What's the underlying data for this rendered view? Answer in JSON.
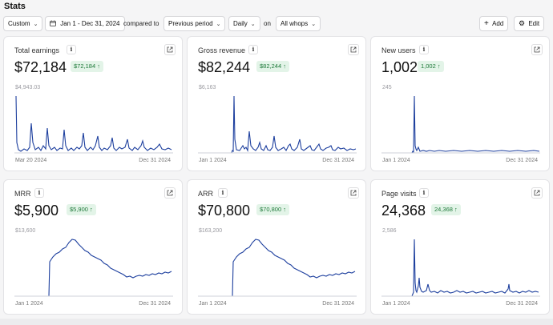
{
  "page": {
    "title": "Stats"
  },
  "toolbar": {
    "range_preset": "Custom",
    "date_range": "Jan 1 - Dec 31, 2024",
    "compared_to_label": "compared to",
    "comparison": "Previous period",
    "interval": "Daily",
    "on_label": "on",
    "scope": "All whops",
    "add_label": "Add",
    "edit_label": "Edit"
  },
  "cards": [
    {
      "title": "Total earnings",
      "value": "$72,184",
      "badge": "$72,184 ↑",
      "ymax": "$4,943.03",
      "x_start": "Mar 20 2024",
      "x_end": "Dec 31 2024"
    },
    {
      "title": "Gross revenue",
      "value": "$82,244",
      "badge": "$82,244 ↑",
      "ymax": "$6,163",
      "x_start": "Jan 1 2024",
      "x_end": "Dec 31 2024"
    },
    {
      "title": "New users",
      "value": "1,002",
      "badge": "1,002 ↑",
      "ymax": "245",
      "x_start": "Jan 1 2024",
      "x_end": "Dec 31 2024"
    },
    {
      "title": "MRR",
      "value": "$5,900",
      "badge": "$5,900 ↑",
      "ymax": "$13,600",
      "x_start": "Jan 1 2024",
      "x_end": "Dec 31 2024"
    },
    {
      "title": "ARR",
      "value": "$70,800",
      "badge": "$70,800 ↑",
      "ymax": "$163,200",
      "x_start": "Jan 1 2024",
      "x_end": "Dec 31 2024"
    },
    {
      "title": "Page visits",
      "value": "24,368",
      "badge": "24,368 ↑",
      "ymax": "2,586",
      "x_start": "Jan 1 2024",
      "x_end": "Dec 31 2024"
    }
  ],
  "colors": {
    "line": "#1d3f9e",
    "badge_bg": "#e3f4e8",
    "badge_text": "#1f7a3a"
  },
  "icons": [
    "calendar-icon",
    "chevron-down-icon",
    "plus-icon",
    "gear-icon",
    "info-icon",
    "external-link-icon"
  ]
}
